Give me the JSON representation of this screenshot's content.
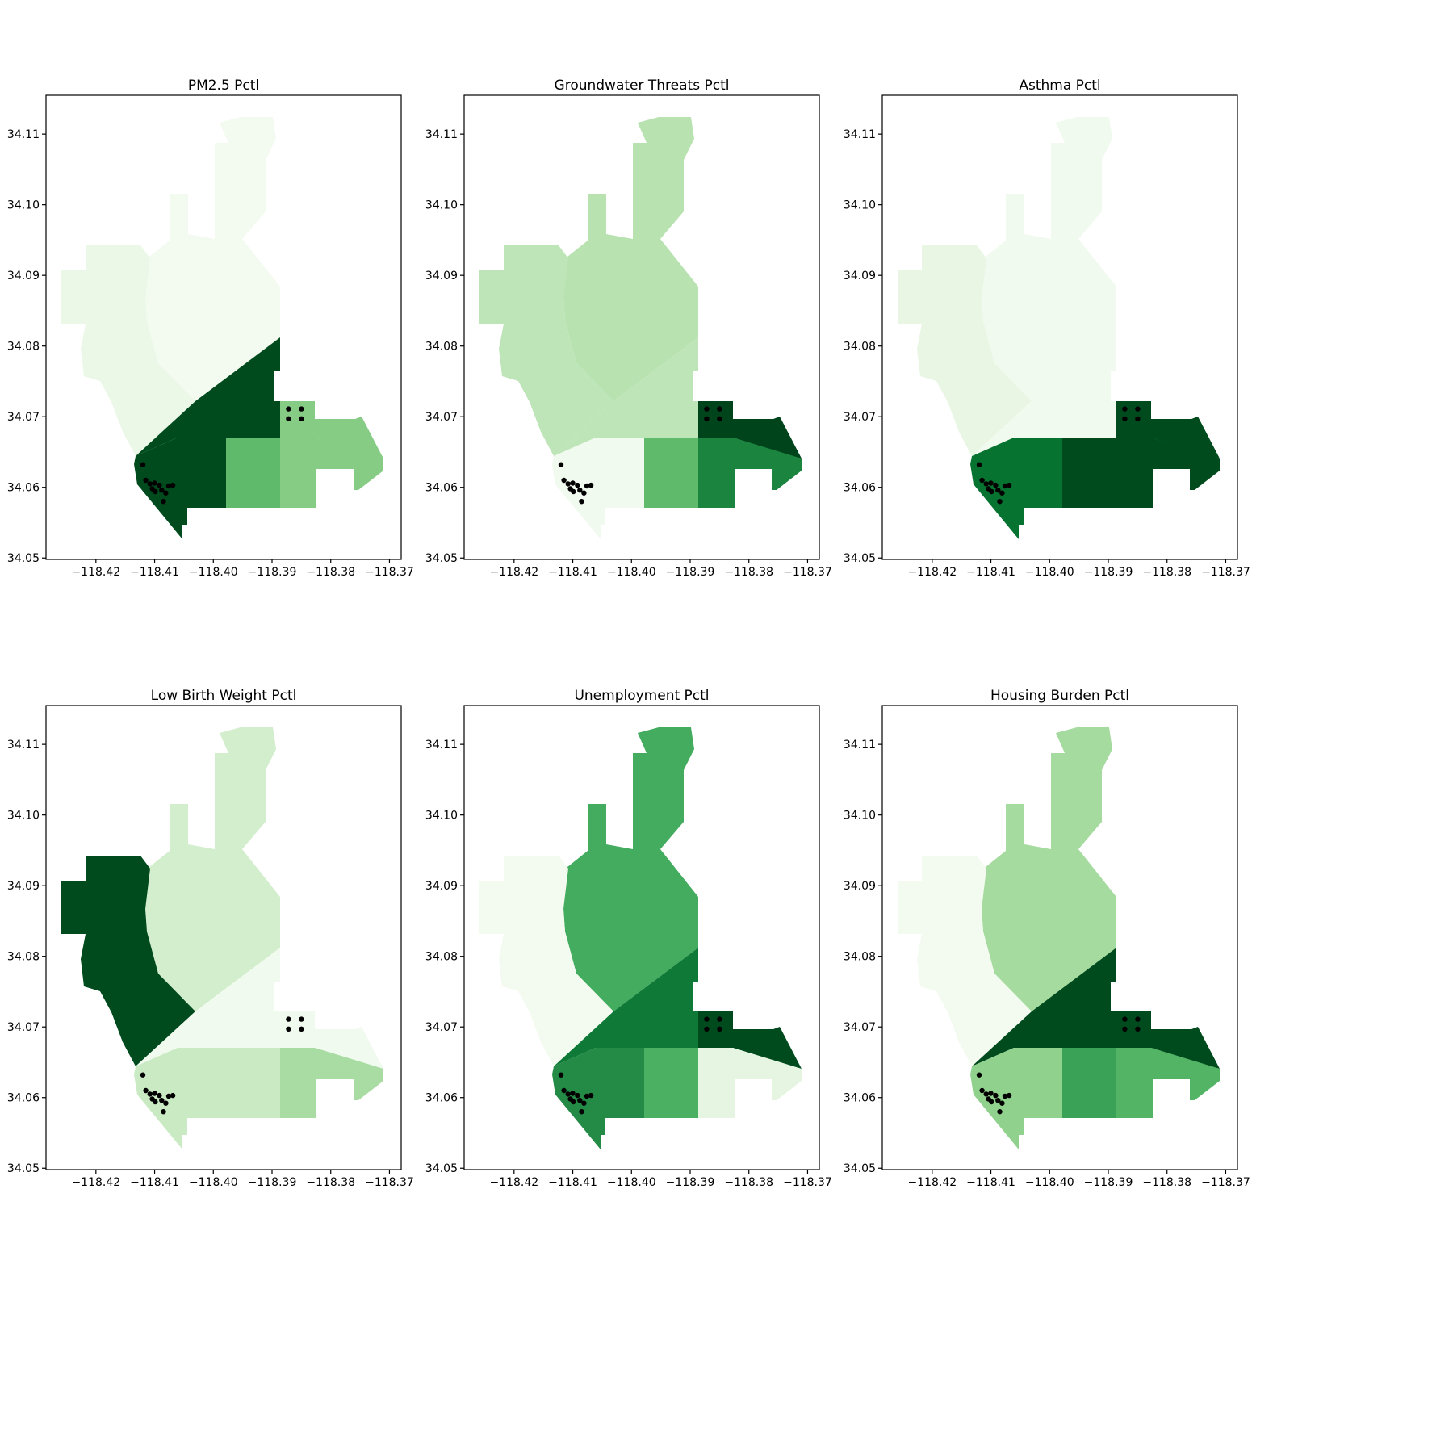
{
  "figure": {
    "panels": [
      {
        "title": "PM2.5 Pctl",
        "shades": {
          "north": 0.03,
          "west": 0.08,
          "diag": 0.98,
          "ne": 0.45,
          "east": 0.5,
          "sw": 0.98,
          "sm": 0.55,
          "sc": 0.45,
          "se": 0.45,
          "east2": 0.45
        }
      },
      {
        "title": "Groundwater Threats Pctl",
        "shades": {
          "north": 0.3,
          "west": 0.28,
          "diag": 0.28,
          "ne": 1.0,
          "east": 1.0,
          "sw": 0.04,
          "sm": 0.55,
          "sc": 0.78,
          "se": 0.78,
          "east2": 0.78
        }
      },
      {
        "title": "Asthma Pctl",
        "shades": {
          "north": 0.04,
          "west": 0.1,
          "diag": 0.04,
          "ne": 0.98,
          "east": 0.98,
          "sw": 0.85,
          "sm": 0.98,
          "sc": 0.98,
          "se": 0.98,
          "east2": 0.98
        }
      },
      {
        "title": "Low Birth Weight Pctl",
        "shades": {
          "north": 0.2,
          "west": 0.98,
          "diag": 0.04,
          "ne": 0.04,
          "east": 0.04,
          "sw": 0.24,
          "sm": 0.24,
          "sc": 0.35,
          "se": 0.35,
          "east2": 0.35
        }
      },
      {
        "title": "Unemployment Pctl",
        "shades": {
          "north": 0.62,
          "west": 0.03,
          "diag": 0.82,
          "ne": 0.98,
          "east": 0.98,
          "sw": 0.75,
          "sm": 0.6,
          "sc": 0.12,
          "se": 0.12,
          "east2": 0.12
        }
      },
      {
        "title": "Housing Burden Pctl",
        "shades": {
          "north": 0.36,
          "west": 0.03,
          "diag": 0.98,
          "ne": 0.98,
          "east": 0.98,
          "sw": 0.42,
          "sm": 0.66,
          "sc": 0.58,
          "se": 0.58,
          "east2": 0.58
        }
      }
    ],
    "x_ticks": [
      "−118.42",
      "−118.41",
      "−118.40",
      "−118.39",
      "−118.38",
      "−118.37"
    ],
    "y_ticks": [
      "34.05",
      "34.06",
      "34.07",
      "34.08",
      "34.09",
      "34.10",
      "34.11"
    ],
    "x_tick_values": [
      -118.42,
      -118.41,
      -118.4,
      -118.39,
      -118.38,
      -118.37
    ],
    "y_tick_values": [
      34.05,
      34.06,
      34.07,
      34.08,
      34.09,
      34.1,
      34.11
    ],
    "xlim": [
      -118.4285,
      -118.368
    ],
    "ylim": [
      34.0498,
      34.1155
    ],
    "colormap": "Greens",
    "points": [
      [
        -118.412,
        34.0632
      ],
      [
        -118.4115,
        34.061
      ],
      [
        -118.4108,
        34.0605
      ],
      [
        -118.41,
        34.0606
      ],
      [
        -118.4092,
        34.0603
      ],
      [
        -118.4104,
        34.0598
      ],
      [
        -118.4099,
        34.0594
      ],
      [
        -118.4088,
        34.0596
      ],
      [
        -118.4076,
        34.0602
      ],
      [
        -118.4081,
        34.0592
      ],
      [
        -118.4069,
        34.0603
      ],
      [
        -118.4085,
        34.058
      ],
      [
        -118.3872,
        34.0711
      ],
      [
        -118.385,
        34.0711
      ],
      [
        -118.3872,
        34.0697
      ],
      [
        -118.385,
        34.0697
      ]
    ]
  }
}
